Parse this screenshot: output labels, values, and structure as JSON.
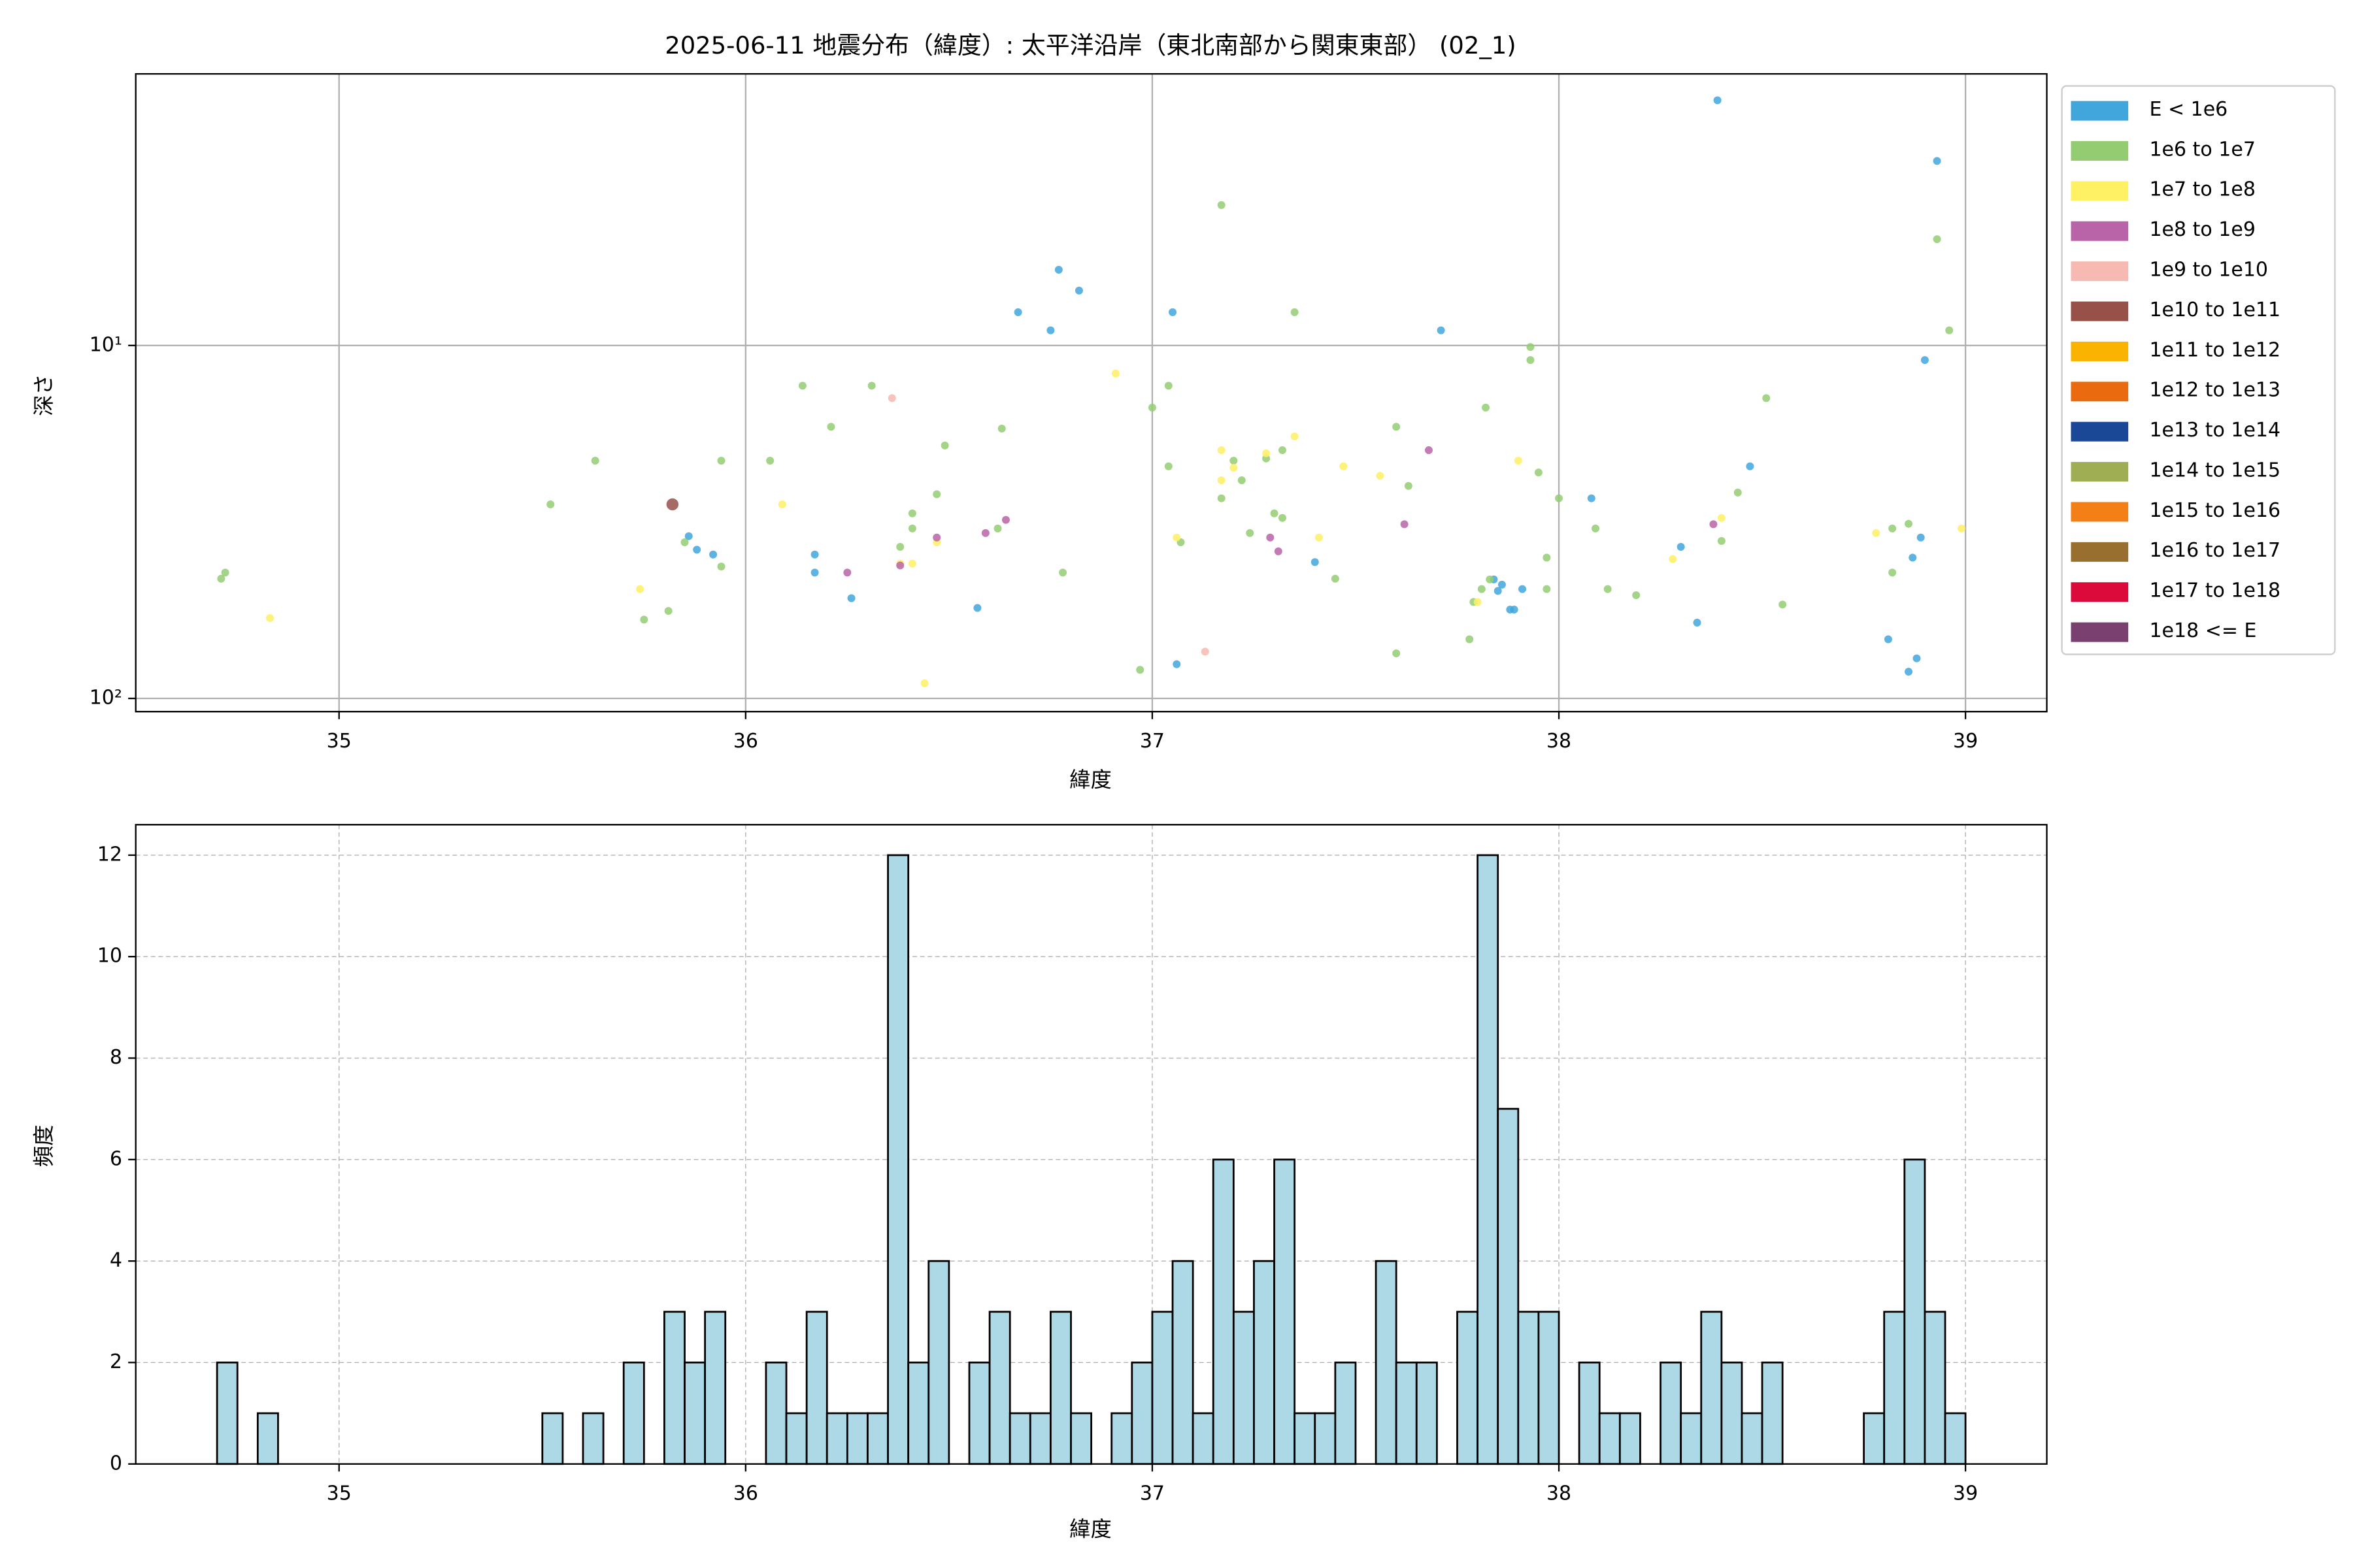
{
  "chart_data": [
    {
      "type": "scatter",
      "title": "2025-06-11 地震分布（緯度）: 太平洋沿岸（東北南部から関東東部） (02_1)",
      "x_label": "緯度",
      "y_label": "深さ",
      "xlim": [
        34.5,
        39.2
      ],
      "xticks": [
        35,
        36,
        37,
        38,
        39
      ],
      "ylim": [
        1.7,
        109
      ],
      "yticks": [
        {
          "value": 10,
          "label": "10¹"
        },
        {
          "value": 100,
          "label": "10²"
        }
      ],
      "log_y": true,
      "invert_y": true,
      "grid": true,
      "legend": "outside-right",
      "series": [
        {
          "name": "E < 1e6",
          "color": "#41a6dc",
          "x": [
            38.39,
            38.93,
            38.9,
            36.77,
            36.82,
            36.67,
            36.75,
            37.05,
            37.71,
            35.86,
            35.88,
            35.92,
            36.17,
            36.17,
            36.26,
            36.57,
            37.06,
            37.4,
            38.08,
            38.3,
            38.47,
            38.34,
            38.87,
            38.89,
            38.81,
            38.86,
            38.88,
            37.84,
            37.86,
            37.88,
            37.89,
            37.91,
            37.85
          ],
          "values": [
            2.02,
            3.0,
            11.0,
            6.1,
            6.99,
            8.05,
            9.06,
            8.05,
            9.06,
            34.7,
            37.9,
            39.1,
            39.1,
            44.0,
            52.0,
            55.4,
            80,
            41.1,
            27.1,
            37.2,
            22.0,
            61,
            39.9,
            35.0,
            68,
            84,
            77,
            46,
            47.6,
            56,
            56,
            49,
            49.6
          ]
        },
        {
          "name": "1e6 to 1e7",
          "color": "#94cc72",
          "x": [
            34.71,
            34.72,
            35.52,
            35.63,
            35.81,
            35.75,
            35.85,
            35.94,
            35.94,
            36.06,
            36.14,
            36.21,
            36.31,
            36.38,
            36.41,
            36.41,
            36.47,
            36.49,
            36.63,
            36.62,
            36.78,
            36.97,
            37.0,
            37.04,
            37.04,
            37.07,
            37.17,
            37.17,
            37.2,
            37.22,
            37.24,
            37.28,
            37.3,
            37.32,
            37.32,
            37.35,
            37.45,
            37.6,
            37.6,
            37.63,
            37.78,
            37.79,
            37.82,
            37.93,
            37.93,
            37.95,
            37.97,
            37.97,
            38.0,
            38.09,
            38.12,
            38.19,
            38.4,
            38.44,
            38.51,
            38.55,
            38.82,
            38.82,
            38.86,
            38.93,
            38.96,
            37.81,
            37.83
          ],
          "values": [
            45.8,
            44,
            28.2,
            21.2,
            56.5,
            59.8,
            36.1,
            21.2,
            42.3,
            21.2,
            13.0,
            17.0,
            13.0,
            37.2,
            29.9,
            33.0,
            26.4,
            19.2,
            17.2,
            33.0,
            44.0,
            83,
            15.0,
            13.0,
            22.0,
            36.1,
            4.0,
            27.1,
            21.2,
            24.1,
            34.0,
            20.9,
            29.9,
            30.8,
            19.8,
            8.05,
            45.8,
            17.0,
            74.5,
            25.0,
            68,
            53.3,
            15.0,
            10.1,
            11.0,
            22.9,
            39.9,
            49,
            27.1,
            33,
            49,
            51,
            35.8,
            26.1,
            14.1,
            54.2,
            33,
            44,
            32,
            5.0,
            9.06,
            49,
            46
          ]
        },
        {
          "name": "1e7 to 1e8",
          "color": "#fff064",
          "x": [
            34.83,
            35.74,
            36.09,
            36.38,
            36.41,
            36.47,
            36.44,
            36.91,
            37.06,
            37.17,
            37.17,
            37.2,
            37.28,
            37.35,
            37.41,
            37.47,
            37.56,
            37.9,
            38.28,
            38.4,
            38.78,
            38.99,
            37.8
          ],
          "values": [
            59.2,
            49,
            28.2,
            41.5,
            41.5,
            36.1,
            90.6,
            12.0,
            35,
            19.8,
            24.1,
            22.2,
            20.2,
            18.1,
            35,
            22.0,
            23.4,
            21.2,
            40.3,
            30.8,
            34,
            33,
            53.3
          ]
        },
        {
          "name": "1e8 to 1e9",
          "color": "#b964a8",
          "x": [
            36.25,
            36.38,
            36.47,
            36.59,
            36.64,
            37.29,
            37.31,
            37.62,
            37.68,
            38.38
          ],
          "values": [
            44,
            42,
            35,
            34,
            31.2,
            35,
            38.3,
            32.1,
            19.8,
            32.1
          ]
        },
        {
          "name": "1e9 to 1e10",
          "color": "#f6bab2",
          "x": [
            36.36,
            37.13
          ],
          "values": [
            14.1,
            73.7
          ]
        },
        {
          "name": "1e10 to 1e11",
          "color": "#975149",
          "x": [
            35.82
          ],
          "values": [
            28.2
          ]
        },
        {
          "name": "1e11 to 1e12",
          "color": "#f9b300",
          "x": [],
          "values": []
        },
        {
          "name": "1e12 to 1e13",
          "color": "#ea6a10",
          "x": [],
          "values": []
        },
        {
          "name": "1e13 to 1e14",
          "color": "#1b4896",
          "x": [],
          "values": []
        },
        {
          "name": "1e14 to 1e15",
          "color": "#9fae53",
          "x": [],
          "values": []
        },
        {
          "name": "1e15 to 1e16",
          "color": "#f47f17",
          "x": [],
          "values": []
        },
        {
          "name": "1e16 to 1e17",
          "color": "#986f2e",
          "x": [],
          "values": []
        },
        {
          "name": "1e17 to 1e18",
          "color": "#dc0a3a",
          "x": [],
          "values": []
        },
        {
          "name": "1e18 <= E",
          "color": "#7a4170",
          "x": [],
          "values": []
        }
      ]
    },
    {
      "type": "histogram",
      "x_label": "緯度",
      "y_label": "頻度",
      "xlim": [
        34.5,
        39.2
      ],
      "xticks": [
        35,
        36,
        37,
        38,
        39
      ],
      "ylim": [
        0,
        12.6
      ],
      "yticks": [
        0,
        2,
        4,
        6,
        8,
        10,
        12
      ],
      "grid": true,
      "grid_style": "dashed",
      "color": "#add8e6",
      "edgecolor": "#000000",
      "bins": [
        34.7,
        34.75,
        34.8,
        34.85,
        34.9,
        34.95,
        35.0,
        35.05,
        35.1,
        35.15,
        35.2,
        35.25,
        35.3,
        35.35,
        35.4,
        35.45,
        35.5,
        35.55,
        35.6,
        35.65,
        35.7,
        35.75,
        35.8,
        35.85,
        35.9,
        35.95,
        36.0,
        36.05,
        36.1,
        36.15,
        36.2,
        36.25,
        36.3,
        36.35,
        36.4,
        36.45,
        36.5,
        36.55,
        36.6,
        36.65,
        36.7,
        36.75,
        36.8,
        36.85,
        36.9,
        36.95,
        37.0,
        37.05,
        37.1,
        37.15,
        37.2,
        37.25,
        37.3,
        37.35,
        37.4,
        37.45,
        37.5,
        37.55,
        37.6,
        37.65,
        37.7,
        37.75,
        37.8,
        37.85,
        37.9,
        37.95,
        38.0,
        38.05,
        38.1,
        38.15,
        38.2,
        38.25,
        38.3,
        38.35,
        38.4,
        38.45,
        38.5,
        38.55,
        38.6,
        38.65,
        38.7,
        38.75,
        38.8,
        38.85,
        38.9,
        38.95,
        39.0
      ],
      "counts": [
        2,
        0,
        1,
        0,
        0,
        0,
        0,
        0,
        0,
        0,
        0,
        0,
        0,
        0,
        0,
        0,
        1,
        0,
        1,
        0,
        2,
        0,
        3,
        2,
        3,
        0,
        0,
        2,
        1,
        3,
        1,
        1,
        1,
        12,
        2,
        4,
        0,
        2,
        3,
        1,
        1,
        3,
        1,
        0,
        1,
        2,
        3,
        4,
        1,
        6,
        3,
        4,
        6,
        1,
        1,
        2,
        0,
        4,
        2,
        2,
        0,
        3,
        12,
        7,
        3,
        3,
        0,
        2,
        1,
        1,
        0,
        2,
        1,
        3,
        2,
        1,
        2,
        0,
        0,
        0,
        0,
        1,
        3,
        6,
        3,
        1
      ]
    }
  ]
}
